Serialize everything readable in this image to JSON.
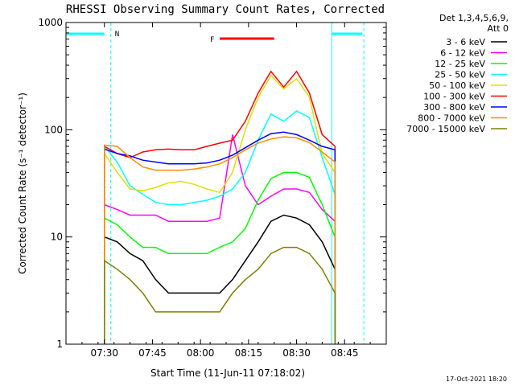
{
  "chart_data": {
    "type": "line",
    "title": "RHESSI Observing Summary Count Rates, Corrected",
    "xlabel": "Start Time (11-Jun-11 07:18:02)",
    "ylabel": "Corrected Count Rate (s⁻¹ detector⁻¹)",
    "yscale": "log",
    "ylim": [
      1,
      1000
    ],
    "xlim": [
      "07:18",
      "08:58"
    ],
    "x_ticks": [
      "07:30",
      "07:45",
      "08:00",
      "08:15",
      "08:30",
      "08:45"
    ],
    "y_ticks": [
      "1",
      "10",
      "100",
      "1000"
    ],
    "grid": false,
    "legend_position": "right",
    "legend_header": [
      "Det 1,3,4,5,6,9,",
      "Att 0"
    ],
    "annotations": {
      "N_marker": "N",
      "F_marker": "F"
    },
    "timestamp": "17-Oct-2021 18:20",
    "x": [
      "07:30",
      "07:34",
      "07:38",
      "07:42",
      "07:46",
      "07:50",
      "07:54",
      "07:58",
      "08:02",
      "08:06",
      "08:10",
      "08:14",
      "08:18",
      "08:22",
      "08:26",
      "08:30",
      "08:34",
      "08:38",
      "08:42"
    ],
    "series": [
      {
        "name": "3 - 6 keV",
        "color": "#000000",
        "values": [
          10,
          9,
          7,
          6,
          4,
          3,
          3,
          3,
          3,
          3,
          4,
          6,
          9,
          14,
          16,
          15,
          13,
          9,
          5
        ]
      },
      {
        "name": "6 - 12 keV",
        "color": "#ff00ff",
        "values": [
          20,
          18,
          16,
          16,
          16,
          14,
          14,
          14,
          14,
          15,
          90,
          30,
          20,
          24,
          28,
          28,
          26,
          18,
          14
        ]
      },
      {
        "name": "12 - 25 keV",
        "color": "#00ff00",
        "values": [
          15,
          13,
          10,
          8,
          8,
          7,
          7,
          7,
          7,
          8,
          9,
          12,
          22,
          35,
          40,
          40,
          36,
          20,
          10
        ]
      },
      {
        "name": "25 - 50 keV",
        "color": "#00ffff",
        "values": [
          70,
          50,
          30,
          25,
          21,
          20,
          20,
          21,
          22,
          24,
          28,
          40,
          80,
          140,
          120,
          150,
          130,
          55,
          25
        ]
      },
      {
        "name": "50 - 100 keV",
        "color": "#e0e000",
        "values": [
          60,
          40,
          28,
          27,
          29,
          32,
          33,
          31,
          28,
          26,
          40,
          100,
          200,
          320,
          240,
          300,
          200,
          60,
          40
        ]
      },
      {
        "name": "100 - 300 keV",
        "color": "#ff0000",
        "values": [
          70,
          60,
          55,
          62,
          65,
          66,
          65,
          65,
          70,
          75,
          80,
          120,
          220,
          350,
          250,
          350,
          220,
          90,
          70
        ]
      },
      {
        "name": "300 - 800 keV",
        "color": "#0000ff",
        "values": [
          66,
          60,
          57,
          52,
          50,
          48,
          48,
          48,
          49,
          52,
          58,
          68,
          80,
          92,
          95,
          90,
          80,
          70,
          65
        ]
      },
      {
        "name": "800 - 7000 keV",
        "color": "#ff8c00",
        "values": [
          72,
          70,
          55,
          45,
          42,
          42,
          42,
          43,
          45,
          48,
          55,
          65,
          75,
          82,
          86,
          84,
          76,
          62,
          50
        ]
      },
      {
        "name": "7000 - 15000 keV",
        "color": "#7f7f00",
        "values": [
          6,
          5,
          4,
          3,
          2,
          2,
          2,
          2,
          2,
          2,
          3,
          4,
          5,
          7,
          8,
          8,
          7,
          5,
          3
        ]
      }
    ]
  }
}
